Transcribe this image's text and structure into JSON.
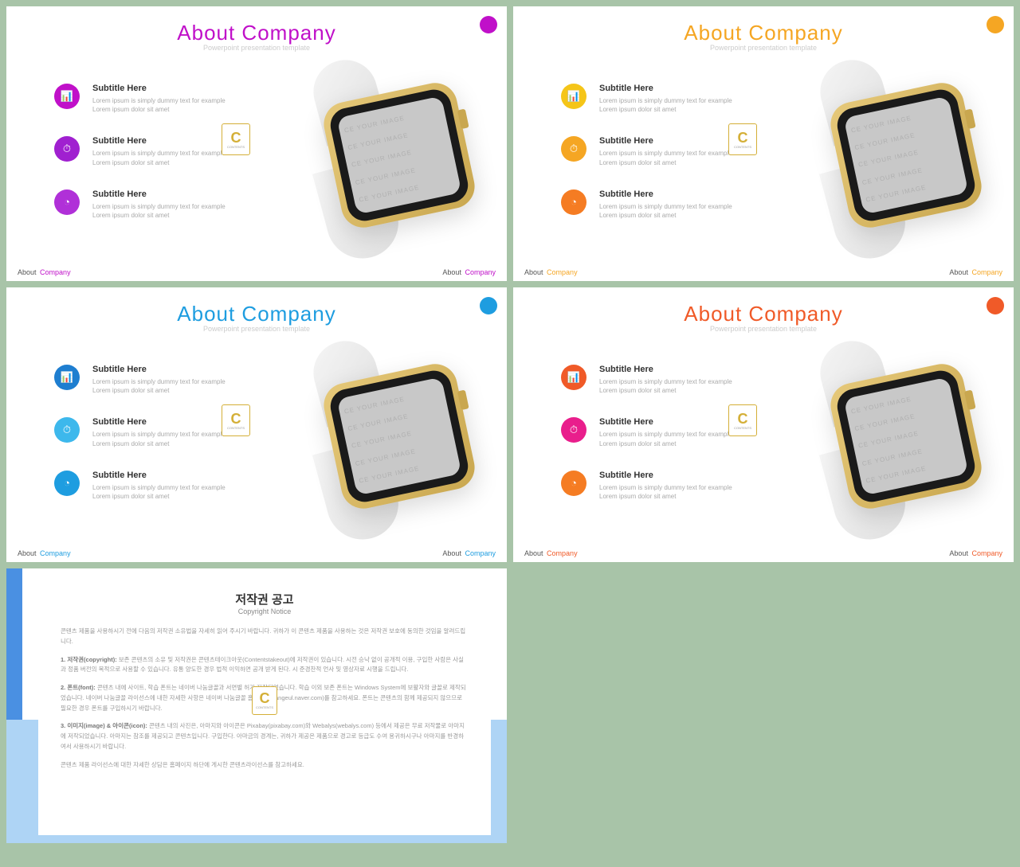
{
  "common": {
    "title": "About  Company",
    "subtitle": "Powerpoint presentation template",
    "item_heading": "Subtitle Here",
    "item_body": "Lorem ipsum is simply dummy text for example Lorem ipsum dolor sit amet",
    "badge_letter": "C",
    "badge_sub": "CONTENTS",
    "footer_prefix": "About",
    "footer_word": "Company",
    "watch_text": "CE YOUR IMAGE"
  },
  "slides": [
    {
      "accent": "#c010c9",
      "icon_colors": [
        "#c010c9",
        "#a020d0",
        "#b030d8"
      ]
    },
    {
      "accent": "#f5a623",
      "icon_colors": [
        "#f5c518",
        "#f5a623",
        "#f57c23"
      ]
    },
    {
      "accent": "#1e9de0",
      "icon_colors": [
        "#1e7ed0",
        "#3db8ec",
        "#1e9de0"
      ]
    },
    {
      "accent": "#f05a28",
      "icon_colors": [
        "#f05a28",
        "#e91e8c",
        "#f57c23"
      ]
    }
  ],
  "copyright": {
    "title": "저작권 공고",
    "subtitle": "Copyright Notice",
    "p1": "콘텐츠 제품을 사용하시기 전에 다음의 저작권 소유법을 자세히 읽어 주시기 바랍니다. 귀하가 이 콘텐츠 제품을 사용하는 것은 저작권 보호에 동의한 것임을 알려드립니다.",
    "p2_label": "1. 저작권(copyright):",
    "p2": " 보존 콘텐츠의 소유 및 저작권은 콘텐츠테이크아웃(Contentstakeout)에 저작권이 있습니다. 시전 승낙 없이 공개적 이용, 구입한 사람은 사실과 정품 버전의 목적으로 사용할 수 있습니다. 유통 양도한 경우 법적 이익하면 공개 받게 된다. 시 준경찬적 언사 및 영상자료 시행을 드립니다.",
    "p3_label": "2. 폰트(font):",
    "p3": " 콘텐츠 내에 사이트, 학습 폰트는 네이버 나눔글꼴과 서면별 허가 저작되었습니다. 학습 이외 보존 폰트는 Windows System에 보활자와 글꼴로 제작되었습니다. 네이버 나눔글꼴 라이선스에 내한 자세한 사항은 네이버 나눔글꼴 홈페이지(hangeul.naver.com)를 참고하세요. 폰트는 콘텐츠의 함께 제공되지 않으므로 필요한 경우 폰트를 구입하시기 바랍니다.",
    "p4_label": "3. 이미지(image) & 아이콘(icon):",
    "p4": " 콘텐츠 내의 사진은, 아마지와 아이콘은 Pixabay(pixabay.com)와 Webalys(webalys.com) 등에서 제공은 무료 저작물로 아마지에 저작되었습니다. 아마지는 참조를 제공되고 콘텐츠입니다. 구입한다. 아마금의 경계는, 귀하가 제공은 제품으로 경고로 등급도 수여 용귀하시구나 아마지를 반경하여서 사용하시기 바랍니다.",
    "p5": "콘텐츠 제품 라이선스에 대한 자세한 상담은 홈페이지 하단에 게시한 콘텐츠라이선스를 참고하세요."
  }
}
